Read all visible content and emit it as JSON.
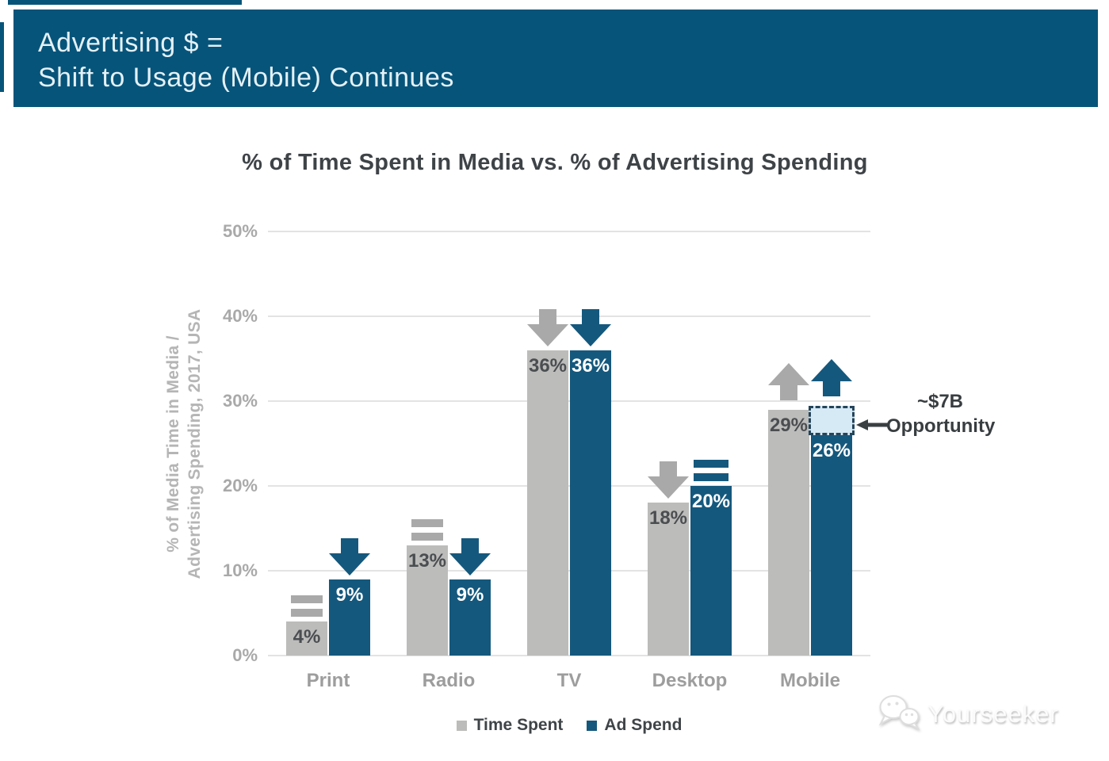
{
  "header": {
    "line1": "Advertising $ =",
    "line2": "Shift to Usage (Mobile) Continues"
  },
  "chart_data": {
    "type": "bar",
    "title": "% of Time Spent in Media vs. % of Advertising Spending",
    "ylabel_line1": "% of Media Time in Media /",
    "ylabel_line2": "Advertising Spending, 2017, USA",
    "ylim": [
      0,
      50
    ],
    "yticks": [
      0,
      10,
      20,
      30,
      40,
      50
    ],
    "tick_suffix": "%",
    "grid": "horizontal",
    "categories": [
      "Print",
      "Radio",
      "TV",
      "Desktop",
      "Mobile"
    ],
    "series": [
      {
        "name": "Time Spent",
        "values": [
          4,
          13,
          36,
          18,
          29
        ],
        "trends": [
          "flat",
          "flat",
          "down",
          "down",
          "up"
        ]
      },
      {
        "name": "Ad Spend",
        "values": [
          9,
          9,
          36,
          20,
          26
        ],
        "trends": [
          "down",
          "down",
          "down",
          "flat",
          "up"
        ]
      }
    ],
    "annotation": {
      "line1": "~$7B",
      "line2": "Opportunity",
      "target_category": "Mobile",
      "target_series": "Ad Spend",
      "box_from": 26,
      "box_to": 29.4
    },
    "legend_position": "bottom-center"
  },
  "legend": [
    {
      "label": "Time Spent",
      "color_key": "bar_gray"
    },
    {
      "label": "Ad Spend",
      "color_key": "bar_blue"
    }
  ],
  "watermark": {
    "text": "Yourseeker",
    "icon": "chat-bubbles-logo-icon"
  },
  "colors": {
    "banner": "#07547a",
    "bar_blue": "#15587d",
    "bar_gray": "#bcbcba",
    "arrow_gray": "#a9a9a9",
    "grid": "#e3e3e3",
    "gray_value_label": "#4b4e51",
    "blue_value_label": "#ffffff",
    "box_fill": "#d6eaf6",
    "box_border": "#24455a",
    "annotation_arrow": "#3a3f42"
  }
}
